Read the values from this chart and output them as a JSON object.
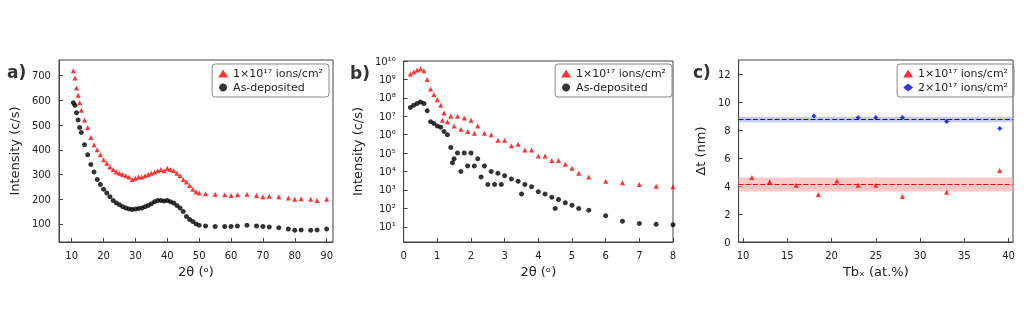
{
  "chart_data": [
    {
      "type": "scatter",
      "title": "a)",
      "xlabel": "2θ (ᵒ)",
      "ylabel": "Intensity (c/s)",
      "xlim": [
        6,
        92
      ],
      "ylim": [
        27,
        763
      ],
      "xticks": [
        10,
        20,
        30,
        40,
        50,
        60,
        70,
        80,
        90
      ],
      "yticks": [
        100,
        200,
        300,
        400,
        500,
        600,
        700
      ],
      "legend": "top right",
      "series": [
        {
          "name": "1×10¹⁷ ions/cm²",
          "color": "#ff0000",
          "marker": "triangle",
          "x": [
            10.5,
            11,
            11.5,
            12,
            12.5,
            13,
            14,
            15,
            16,
            17,
            18,
            19,
            20,
            21,
            22,
            23,
            24,
            25,
            26,
            27,
            28,
            29,
            30,
            31,
            32,
            33,
            34,
            35,
            36,
            37,
            38,
            39,
            40,
            41,
            42,
            43,
            44,
            45,
            46,
            47,
            48,
            49,
            50,
            52,
            55,
            58,
            60,
            62,
            65,
            68,
            70,
            72,
            75,
            78,
            80,
            82,
            85,
            87,
            90
          ],
          "values": [
            720,
            690,
            650,
            620,
            590,
            560,
            520,
            490,
            450,
            420,
            400,
            380,
            360,
            345,
            330,
            320,
            310,
            305,
            300,
            295,
            290,
            280,
            285,
            290,
            290,
            295,
            300,
            305,
            310,
            315,
            320,
            315,
            325,
            320,
            315,
            305,
            295,
            280,
            270,
            255,
            240,
            230,
            225,
            222,
            220,
            218,
            215,
            218,
            220,
            215,
            210,
            212,
            210,
            205,
            200,
            202,
            200,
            195,
            200
          ]
        },
        {
          "name": "As-deposited",
          "color": "#000000",
          "marker": "circle",
          "x": [
            10.5,
            11,
            11.5,
            12,
            12.5,
            13,
            14,
            15,
            16,
            17,
            18,
            19,
            20,
            21,
            22,
            23,
            24,
            25,
            26,
            27,
            28,
            29,
            30,
            31,
            32,
            33,
            34,
            35,
            36,
            37,
            38,
            39,
            40,
            41,
            42,
            43,
            44,
            45,
            46,
            47,
            48,
            49,
            50,
            52,
            55,
            58,
            60,
            62,
            65,
            68,
            70,
            72,
            75,
            78,
            80,
            82,
            85,
            87,
            90
          ],
          "values": [
            590,
            580,
            550,
            520,
            490,
            470,
            420,
            380,
            340,
            310,
            280,
            260,
            240,
            225,
            210,
            195,
            185,
            178,
            170,
            165,
            160,
            158,
            160,
            162,
            165,
            170,
            175,
            182,
            190,
            195,
            195,
            193,
            195,
            190,
            185,
            175,
            165,
            150,
            130,
            118,
            110,
            100,
            95,
            92,
            90,
            90,
            90,
            92,
            95,
            92,
            90,
            88,
            85,
            80,
            75,
            76,
            75,
            76,
            80
          ]
        }
      ]
    },
    {
      "type": "scatter",
      "title": "b)",
      "xlabel": "2θ (ᵒ)",
      "ylabel": "Intensity (c/s)",
      "log": "y",
      "xlim": [
        0,
        8
      ],
      "ylim": [
        1.5,
        10000000000
      ],
      "xticks": [
        0,
        1,
        2,
        3,
        4,
        5,
        6,
        7,
        8
      ],
      "yticks": [
        {
          "value": 10,
          "label": "10¹"
        },
        {
          "value": 100,
          "label": "10²"
        },
        {
          "value": 1000,
          "label": "10³"
        },
        {
          "value": 10000,
          "label": "10⁴"
        },
        {
          "value": 100000,
          "label": "10⁵"
        },
        {
          "value": 1000000,
          "label": "10⁶"
        },
        {
          "value": 10000000,
          "label": "10⁷"
        },
        {
          "value": 100000000,
          "label": "10⁸"
        },
        {
          "value": 1000000000,
          "label": "10⁹"
        },
        {
          "value": 10000000000,
          "label": "10¹⁰"
        }
      ],
      "legend": "top right",
      "series": [
        {
          "name": "1×10¹⁷ ions/cm²",
          "color": "#ff0000",
          "marker": "triangle",
          "x": [
            0.2,
            0.3,
            0.4,
            0.5,
            0.6,
            0.7,
            0.8,
            0.9,
            1.0,
            1.1,
            1.15,
            1.2,
            1.3,
            1.4,
            1.5,
            1.6,
            1.7,
            1.8,
            1.9,
            2.0,
            2.1,
            2.2,
            2.4,
            2.6,
            2.8,
            3.0,
            3.2,
            3.4,
            3.6,
            3.8,
            4.0,
            4.2,
            4.4,
            4.6,
            4.8,
            5.0,
            5.2,
            5.5,
            6.0,
            6.5,
            7.0,
            7.5,
            8.0
          ],
          "values": [
            2000000000,
            2500000000,
            3200000000,
            3800000000,
            3000000000,
            1000000000,
            300000000,
            150000000,
            80000000,
            40000000,
            6000000,
            15000000,
            5000000,
            10000000,
            3000000,
            10000000,
            2000000,
            8000000,
            1500000,
            6000000,
            1200000,
            3000000,
            1200000,
            1000000,
            500000,
            500000,
            250000,
            300000,
            150000,
            150000,
            70000,
            70000,
            40000,
            40000,
            25000,
            15000,
            8000,
            5000,
            3000,
            2500,
            2000,
            1600,
            1500
          ]
        },
        {
          "name": "As-deposited",
          "color": "#000000",
          "marker": "circle",
          "x": [
            0.2,
            0.3,
            0.4,
            0.5,
            0.6,
            0.7,
            0.8,
            0.9,
            1.0,
            1.1,
            1.2,
            1.3,
            1.4,
            1.45,
            1.5,
            1.6,
            1.7,
            1.8,
            1.9,
            2.0,
            2.1,
            2.2,
            2.3,
            2.4,
            2.5,
            2.6,
            2.7,
            2.8,
            2.9,
            3.0,
            3.2,
            3.4,
            3.5,
            3.6,
            3.8,
            4.0,
            4.2,
            4.4,
            4.5,
            4.6,
            4.8,
            5.0,
            5.2,
            5.5,
            6.0,
            6.5,
            7.0,
            7.5,
            8.0
          ],
          "values": [
            30000000,
            40000000,
            50000000,
            60000000,
            50000000,
            20000000,
            5000000,
            4000000,
            3000000,
            2500000,
            1500000,
            1000000,
            200000,
            30000,
            50000,
            100000,
            10000,
            100000,
            20000,
            100000,
            20000,
            50000,
            5000,
            20000,
            2000,
            10000,
            2000,
            8000,
            2000,
            6000,
            4000,
            3000,
            600,
            2000,
            1500,
            800,
            600,
            400,
            100,
            300,
            200,
            150,
            100,
            80,
            40,
            20,
            15,
            14,
            13
          ]
        }
      ]
    },
    {
      "type": "scatter",
      "title": "c)",
      "xlabel": "Tbₓ (at.%)",
      "ylabel": "Δt (nm)",
      "xlim": [
        9.5,
        40.5
      ],
      "ylim": [
        0,
        13
      ],
      "xticks": [
        10,
        15,
        20,
        25,
        30,
        35,
        40
      ],
      "yticks": [
        0,
        2,
        4,
        6,
        8,
        10,
        12
      ],
      "legend": "top right",
      "series": [
        {
          "name": "1×10¹⁷ ions/cm²",
          "color": "#ff0000",
          "marker": "triangle",
          "x": [
            11,
            13,
            16,
            18.5,
            20.6,
            23,
            25,
            28,
            33,
            39
          ],
          "values": [
            4.6,
            4.3,
            4.05,
            3.4,
            4.35,
            4.05,
            4.05,
            3.25,
            3.55,
            5.1
          ]
        },
        {
          "name": "2×10¹⁷ ions/cm²",
          "color": "#0000ff",
          "marker": "diamond",
          "x": [
            18,
            23,
            25,
            28,
            33,
            39
          ],
          "values": [
            9.0,
            8.9,
            8.9,
            8.9,
            8.6,
            8.1
          ]
        }
      ],
      "ref_lines": [
        {
          "axis": "y",
          "value": 4.1,
          "color": "#ff0000",
          "line_style": "dashed"
        },
        {
          "axis": "y",
          "value": 8.75,
          "color": "#0000ff",
          "line_style": "dashed"
        }
      ],
      "bands": [
        {
          "axis": "y",
          "from": 3.6,
          "to": 4.6,
          "color": "#f4a6a6"
        },
        {
          "axis": "y",
          "from": 8.55,
          "to": 8.95,
          "color": "#a6a6f4"
        }
      ]
    }
  ]
}
